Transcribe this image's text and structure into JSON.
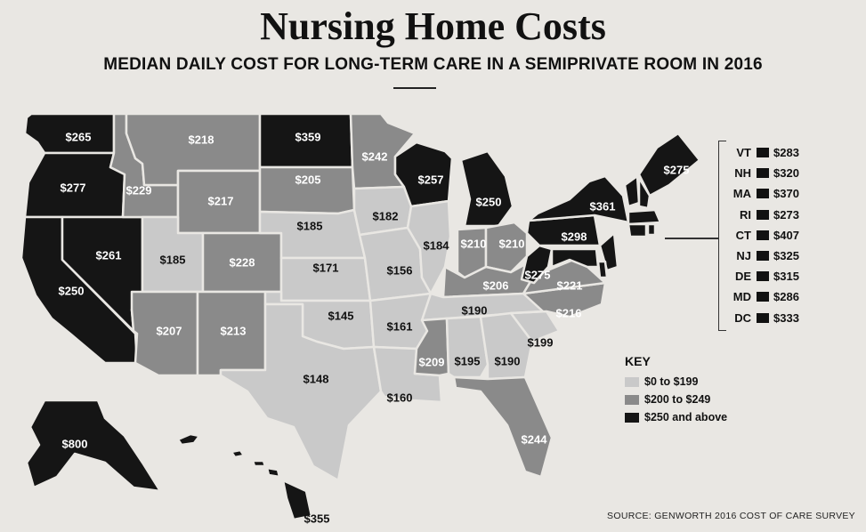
{
  "title": "Nursing Home Costs",
  "subtitle": "MEDIAN DAILY COST FOR LONG-TERM CARE IN A SEMIPRIVATE ROOM IN 2016",
  "colors": {
    "low": "#c9c9c9",
    "mid": "#8a8a8a",
    "high": "#151515",
    "text_light": "#ffffff",
    "text_dark": "#111111"
  },
  "key": {
    "title": "KEY",
    "items": [
      {
        "label": "$0 to $199",
        "tier": "low"
      },
      {
        "label": "$200 to $249",
        "tier": "mid"
      },
      {
        "label": "$250 and above",
        "tier": "high"
      }
    ]
  },
  "states": [
    {
      "abbr": "WA",
      "label": "$265",
      "cost": 265,
      "tier": "high"
    },
    {
      "abbr": "OR",
      "label": "$277",
      "cost": 277,
      "tier": "high"
    },
    {
      "abbr": "CA",
      "label": "$250",
      "cost": 250,
      "tier": "high"
    },
    {
      "abbr": "NV",
      "label": "$261",
      "cost": 261,
      "tier": "high"
    },
    {
      "abbr": "ID",
      "label": "$229",
      "cost": 229,
      "tier": "mid"
    },
    {
      "abbr": "MT",
      "label": "$218",
      "cost": 218,
      "tier": "mid"
    },
    {
      "abbr": "WY",
      "label": "$217",
      "cost": 217,
      "tier": "mid"
    },
    {
      "abbr": "UT",
      "label": "$185",
      "cost": 185,
      "tier": "low"
    },
    {
      "abbr": "AZ",
      "label": "$207",
      "cost": 207,
      "tier": "mid"
    },
    {
      "abbr": "CO",
      "label": "$228",
      "cost": 228,
      "tier": "mid"
    },
    {
      "abbr": "NM",
      "label": "$213",
      "cost": 213,
      "tier": "mid"
    },
    {
      "abbr": "ND",
      "label": "$359",
      "cost": 359,
      "tier": "high"
    },
    {
      "abbr": "SD",
      "label": "$205",
      "cost": 205,
      "tier": "mid"
    },
    {
      "abbr": "NE",
      "label": "$185",
      "cost": 185,
      "tier": "low"
    },
    {
      "abbr": "KS",
      "label": "$171",
      "cost": 171,
      "tier": "low"
    },
    {
      "abbr": "OK",
      "label": "$145",
      "cost": 145,
      "tier": "low"
    },
    {
      "abbr": "TX",
      "label": "$148",
      "cost": 148,
      "tier": "low"
    },
    {
      "abbr": "MN",
      "label": "$242",
      "cost": 242,
      "tier": "mid"
    },
    {
      "abbr": "IA",
      "label": "$182",
      "cost": 182,
      "tier": "low"
    },
    {
      "abbr": "MO",
      "label": "$156",
      "cost": 156,
      "tier": "low"
    },
    {
      "abbr": "AR",
      "label": "$161",
      "cost": 161,
      "tier": "low"
    },
    {
      "abbr": "LA",
      "label": "$160",
      "cost": 160,
      "tier": "low"
    },
    {
      "abbr": "WI",
      "label": "$257",
      "cost": 257,
      "tier": "high"
    },
    {
      "abbr": "IL",
      "label": "$184",
      "cost": 184,
      "tier": "low"
    },
    {
      "abbr": "MI",
      "label": "$250",
      "cost": 250,
      "tier": "high"
    },
    {
      "abbr": "IN",
      "label": "$210",
      "cost": 210,
      "tier": "mid"
    },
    {
      "abbr": "OH",
      "label": "$210",
      "cost": 210,
      "tier": "mid"
    },
    {
      "abbr": "KY",
      "label": "$206",
      "cost": 206,
      "tier": "mid"
    },
    {
      "abbr": "TN",
      "label": "$190",
      "cost": 190,
      "tier": "low"
    },
    {
      "abbr": "MS",
      "label": "$209",
      "cost": 209,
      "tier": "mid"
    },
    {
      "abbr": "AL",
      "label": "$195",
      "cost": 195,
      "tier": "low"
    },
    {
      "abbr": "GA",
      "label": "$190",
      "cost": 190,
      "tier": "low"
    },
    {
      "abbr": "FL",
      "label": "$244",
      "cost": 244,
      "tier": "mid"
    },
    {
      "abbr": "SC",
      "label": "$199",
      "cost": 199,
      "tier": "low"
    },
    {
      "abbr": "NC",
      "label": "$216",
      "cost": 216,
      "tier": "mid"
    },
    {
      "abbr": "VA",
      "label": "$221",
      "cost": 221,
      "tier": "mid"
    },
    {
      "abbr": "WV",
      "label": "$275",
      "cost": 275,
      "tier": "high"
    },
    {
      "abbr": "PA",
      "label": "$298",
      "cost": 298,
      "tier": "high"
    },
    {
      "abbr": "NY",
      "label": "$361",
      "cost": 361,
      "tier": "high"
    },
    {
      "abbr": "ME",
      "label": "$275",
      "cost": 275,
      "tier": "high"
    },
    {
      "abbr": "AK",
      "label": "$800",
      "cost": 800,
      "tier": "high"
    },
    {
      "abbr": "HI",
      "label": "$355",
      "cost": 355,
      "tier": "high"
    }
  ],
  "side_list": [
    {
      "abbr": "VT",
      "label": "$283",
      "cost": 283
    },
    {
      "abbr": "NH",
      "label": "$320",
      "cost": 320
    },
    {
      "abbr": "MA",
      "label": "$370",
      "cost": 370
    },
    {
      "abbr": "RI",
      "label": "$273",
      "cost": 273
    },
    {
      "abbr": "CT",
      "label": "$407",
      "cost": 407
    },
    {
      "abbr": "NJ",
      "label": "$325",
      "cost": 325
    },
    {
      "abbr": "DE",
      "label": "$315",
      "cost": 315
    },
    {
      "abbr": "MD",
      "label": "$286",
      "cost": 286
    },
    {
      "abbr": "DC",
      "label": "$333",
      "cost": 333
    }
  ],
  "source": "SOURCE: GENWORTH 2016 COST OF CARE SURVEY"
}
